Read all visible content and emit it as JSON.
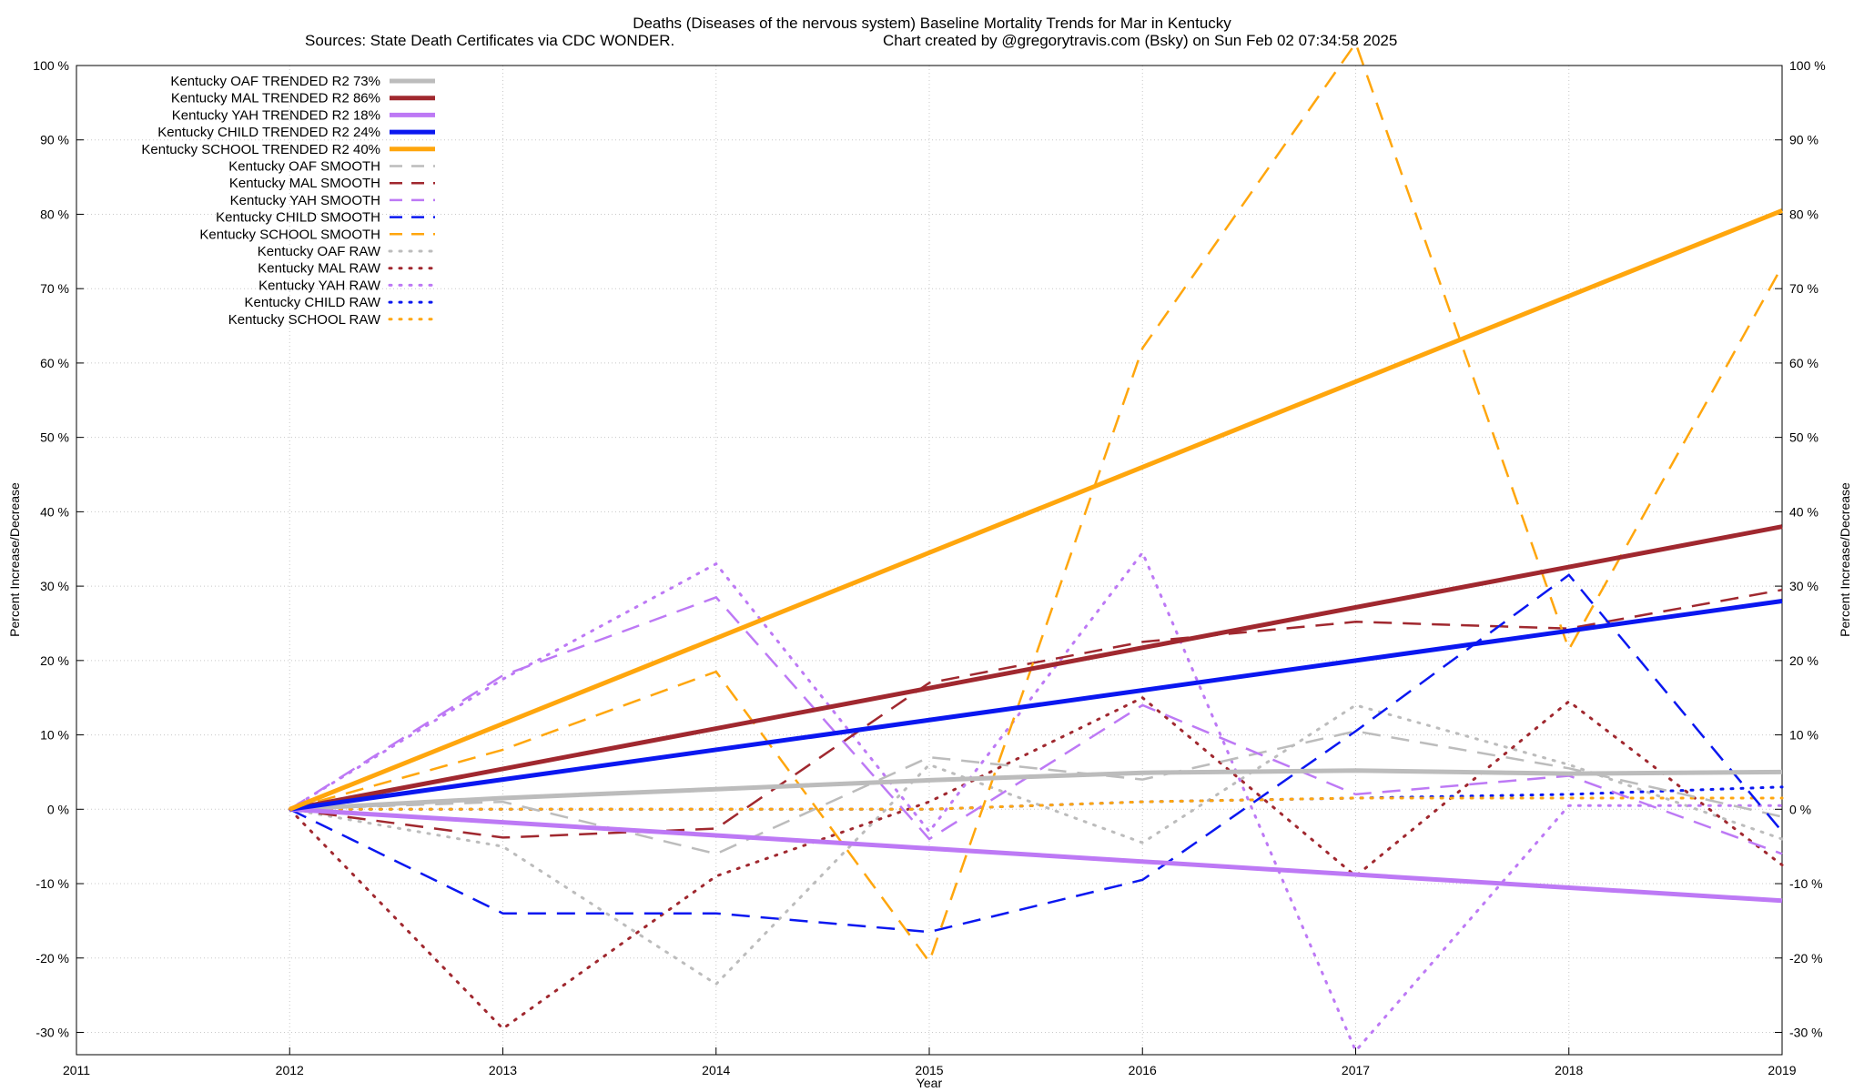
{
  "chart_data": {
    "type": "line",
    "title": "Deaths (Diseases of the nervous system)  Baseline Mortality Trends for Mar in Kentucky",
    "subtitle_left": "Sources: State Death Certificates via CDC WONDER.",
    "subtitle_right": "Chart created by @gregorytravis.com (Bsky) on Sun Feb 02 07:34:58 2025",
    "xlabel": "Year",
    "ylabel": "Percent Increase/Decrease",
    "ylabel_right": "Percent Increase/Decrease",
    "xlim": [
      2011,
      2019
    ],
    "ylim": [
      -33,
      100
    ],
    "x_ticks": [
      2011,
      2012,
      2013,
      2014,
      2015,
      2016,
      2017,
      2018,
      2019
    ],
    "y_ticks": [
      -30,
      -20,
      -10,
      0,
      10,
      20,
      30,
      40,
      50,
      60,
      70,
      80,
      90,
      100
    ],
    "y_tick_suffix": " %",
    "grid": true,
    "legend_position": "top-left",
    "colors": {
      "oaf": "#bcbcbc",
      "mal": "#a0282f",
      "yah": "#bd79f5",
      "child": "#0a17f0",
      "school": "#ffa60d"
    },
    "series": [
      {
        "name": "Kentucky OAF TRENDED R2  73%",
        "group": "oaf",
        "style": "trend",
        "x": [
          2012,
          2013,
          2014,
          2015,
          2016,
          2017,
          2018,
          2019
        ],
        "values": [
          0,
          1.5,
          2.7,
          3.9,
          4.9,
          5.2,
          4.8,
          5.0
        ]
      },
      {
        "name": "Kentucky MAL TRENDED R2  86%",
        "group": "mal",
        "style": "trend",
        "x": [
          2012,
          2019
        ],
        "values": [
          0,
          38
        ]
      },
      {
        "name": "Kentucky YAH TRENDED R2  18%",
        "group": "yah",
        "style": "trend",
        "x": [
          2012,
          2019
        ],
        "values": [
          0,
          -12.3
        ]
      },
      {
        "name": "Kentucky CHILD TRENDED R2  24%",
        "group": "child",
        "style": "trend",
        "x": [
          2012,
          2019
        ],
        "values": [
          0,
          28
        ]
      },
      {
        "name": "Kentucky SCHOOL TRENDED R2  40%",
        "group": "school",
        "style": "trend",
        "x": [
          2012,
          2019
        ],
        "values": [
          0,
          80.5
        ]
      },
      {
        "name": "Kentucky OAF SMOOTH",
        "group": "oaf",
        "style": "smooth",
        "x": [
          2012,
          2013,
          2014,
          2015,
          2016,
          2017,
          2018,
          2019
        ],
        "values": [
          0,
          1,
          -6,
          7,
          4,
          10.5,
          5.5,
          -1
        ]
      },
      {
        "name": "Kentucky MAL SMOOTH",
        "group": "mal",
        "style": "smooth",
        "x": [
          2012,
          2013,
          2014,
          2015,
          2016,
          2017,
          2018,
          2019
        ],
        "values": [
          0,
          -3.8,
          -2.6,
          17,
          22.5,
          25.2,
          24.3,
          29.5
        ]
      },
      {
        "name": "Kentucky YAH SMOOTH",
        "group": "yah",
        "style": "smooth",
        "x": [
          2012,
          2013,
          2014,
          2015,
          2016,
          2017,
          2018,
          2019
        ],
        "values": [
          0,
          18,
          28.5,
          -4,
          14,
          2,
          4.5,
          -6
        ]
      },
      {
        "name": "Kentucky CHILD SMOOTH",
        "group": "child",
        "style": "smooth",
        "x": [
          2012,
          2013,
          2014,
          2015,
          2016,
          2017,
          2018,
          2019
        ],
        "values": [
          0,
          -14,
          -14,
          -16.5,
          -9.5,
          10.5,
          31.5,
          -3
        ]
      },
      {
        "name": "Kentucky SCHOOL SMOOTH",
        "group": "school",
        "style": "smooth",
        "x": [
          2012,
          2013,
          2014,
          2015,
          2016,
          2017,
          2018,
          2019
        ],
        "values": [
          0,
          8,
          18.5,
          -20.5,
          62,
          103,
          21.5,
          73
        ]
      },
      {
        "name": "Kentucky OAF RAW",
        "group": "oaf",
        "style": "raw",
        "x": [
          2012,
          2013,
          2014,
          2015,
          2016,
          2017,
          2018,
          2019
        ],
        "values": [
          0,
          -5,
          -23.5,
          6,
          -4.5,
          14,
          6,
          -4
        ]
      },
      {
        "name": "Kentucky MAL RAW",
        "group": "mal",
        "style": "raw",
        "x": [
          2012,
          2013,
          2014,
          2015,
          2016,
          2017,
          2018,
          2019
        ],
        "values": [
          0,
          -29.5,
          -9,
          1,
          15,
          -9,
          14.5,
          -7.5
        ]
      },
      {
        "name": "Kentucky YAH RAW",
        "group": "yah",
        "style": "raw",
        "x": [
          2012,
          2013,
          2014,
          2015,
          2016,
          2017,
          2018,
          2019
        ],
        "values": [
          0,
          17.5,
          33,
          -3,
          34.5,
          -32.5,
          0.5,
          0.5
        ]
      },
      {
        "name": "Kentucky CHILD RAW",
        "group": "child",
        "style": "raw",
        "x": [
          2012,
          2013,
          2014,
          2015,
          2016,
          2017,
          2018,
          2019
        ],
        "values": [
          0,
          0,
          0,
          0,
          1,
          1.5,
          2,
          3
        ]
      },
      {
        "name": "Kentucky SCHOOL RAW",
        "group": "school",
        "style": "raw",
        "x": [
          2012,
          2013,
          2014,
          2015,
          2016,
          2017,
          2018,
          2019
        ],
        "values": [
          0,
          0,
          0,
          0,
          1,
          1.5,
          1.5,
          1.5
        ]
      }
    ]
  }
}
